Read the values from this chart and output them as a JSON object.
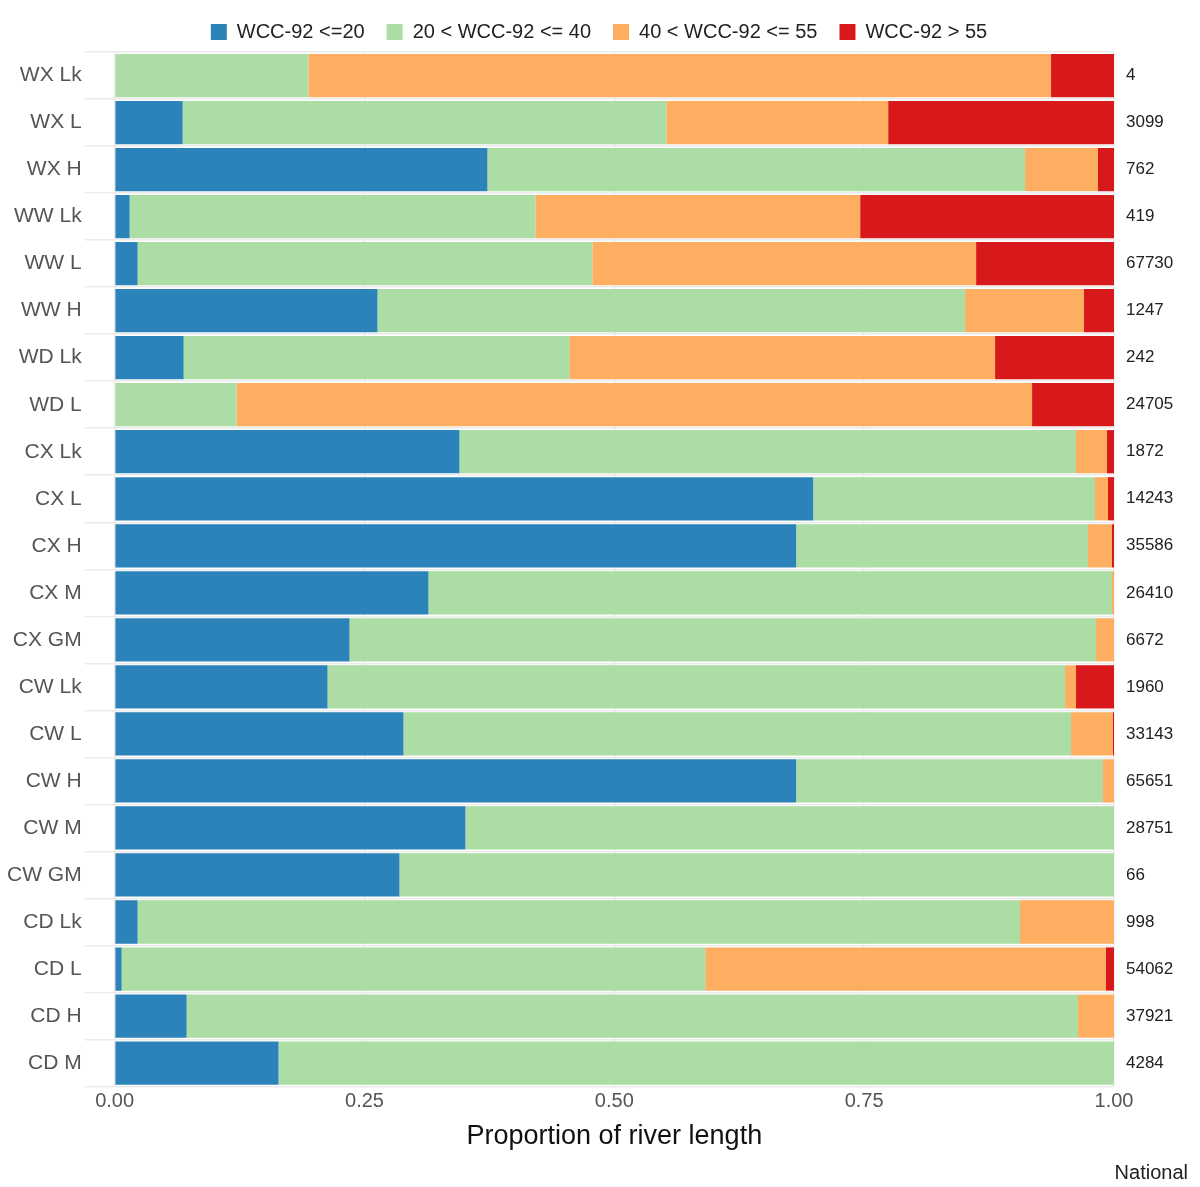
{
  "chart_data": {
    "type": "bar",
    "orientation": "horizontal",
    "stacked": true,
    "xlabel": "Proportion of river length",
    "categories": [
      "WX Lk",
      "WX L",
      "WX H",
      "WW Lk",
      "WW L",
      "WW H",
      "WD Lk",
      "WD L",
      "CX Lk",
      "CX L",
      "CX H",
      "CX M",
      "CX GM",
      "CW Lk",
      "CW L",
      "CW H",
      "CW M",
      "CW GM",
      "CD Lk",
      "CD L",
      "CD H",
      "CD M"
    ],
    "series": [
      {
        "name": "WCC-92 <=20",
        "color": "#2b83ba",
        "values": [
          0,
          0.068,
          0.373,
          0.015,
          0.023,
          0.263,
          0.069,
          0,
          0.345,
          0.699,
          0.682,
          0.314,
          0.235,
          0.213,
          0.289,
          0.682,
          0.351,
          0.285,
          0.023,
          0.007,
          0.072,
          0.164
        ]
      },
      {
        "name": "20 < WCC-92 <= 40",
        "color": "#abdda4",
        "values": [
          0.194,
          0.484,
          0.538,
          0.406,
          0.455,
          0.588,
          0.386,
          0.122,
          0.617,
          0.282,
          0.292,
          0.684,
          0.747,
          0.738,
          0.668,
          0.307,
          0.649,
          0.715,
          0.883,
          0.584,
          0.892,
          0.836
        ]
      },
      {
        "name": "40 < WCC-92 <= 55",
        "color": "#fdae61",
        "values": [
          0.743,
          0.222,
          0.073,
          0.325,
          0.384,
          0.119,
          0.426,
          0.796,
          0.031,
          0.013,
          0.024,
          0.002,
          0.018,
          0.011,
          0.042,
          0.011,
          0,
          0,
          0.094,
          0.401,
          0.036,
          0
        ]
      },
      {
        "name": "WCC-92 > 55",
        "color": "#d7191c",
        "values": [
          0.063,
          0.226,
          0.016,
          0.254,
          0.138,
          0.03,
          0.119,
          0.082,
          0.007,
          0.006,
          0.002,
          0,
          0,
          0.038,
          0.001,
          0,
          0,
          0,
          0,
          0.008,
          0,
          0
        ]
      }
    ],
    "y2_categories": [
      "4",
      "3099",
      "762",
      "419",
      "67730",
      "1247",
      "242",
      "24705",
      "1872",
      "14243",
      "35586",
      "26410",
      "6672",
      "1960",
      "33143",
      "65651",
      "28751",
      "66",
      "998",
      "54062",
      "37921",
      "4284"
    ],
    "xlim": [
      0,
      1
    ],
    "xticks": [
      {
        "value": 0,
        "label": "0.00"
      },
      {
        "value": 0.25,
        "label": "0.25"
      },
      {
        "value": 0.5,
        "label": "0.50"
      },
      {
        "value": 0.75,
        "label": "0.75"
      },
      {
        "value": 1,
        "label": "1.00"
      }
    ],
    "grid": true,
    "legend": "top",
    "annotations": [
      "National"
    ]
  }
}
